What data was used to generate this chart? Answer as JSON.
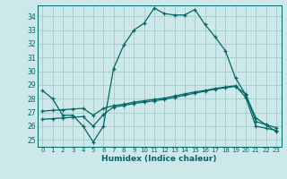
{
  "xlabel": "Humidex (Indice chaleur)",
  "ylabel": "",
  "bg_color": "#cde8e8",
  "grid_color": "#aacece",
  "line_color": "#006666",
  "xlim": [
    -0.5,
    23.5
  ],
  "ylim": [
    24.5,
    34.8
  ],
  "yticks": [
    25,
    26,
    27,
    28,
    29,
    30,
    31,
    32,
    33,
    34
  ],
  "xticks": [
    0,
    1,
    2,
    3,
    4,
    5,
    6,
    7,
    8,
    9,
    10,
    11,
    12,
    13,
    14,
    15,
    16,
    17,
    18,
    19,
    20,
    21,
    22,
    23
  ],
  "line1_x": [
    0,
    1,
    2,
    3,
    4,
    5,
    6,
    7,
    8,
    9,
    10,
    11,
    12,
    13,
    14,
    15,
    16,
    17,
    18,
    19,
    20,
    21,
    22,
    23
  ],
  "line1_y": [
    28.6,
    28.0,
    26.8,
    26.8,
    26.0,
    24.85,
    26.0,
    30.2,
    31.9,
    33.0,
    33.5,
    34.6,
    34.2,
    34.1,
    34.1,
    34.5,
    33.4,
    32.5,
    31.5,
    29.5,
    28.3,
    26.6,
    26.1,
    25.6
  ],
  "line2_x": [
    0,
    1,
    2,
    3,
    4,
    5,
    6,
    7,
    8,
    9,
    10,
    11,
    12,
    13,
    14,
    15,
    16,
    17,
    18,
    19,
    20,
    21,
    22,
    23
  ],
  "line2_y": [
    27.1,
    27.15,
    27.2,
    27.25,
    27.3,
    26.8,
    27.3,
    27.5,
    27.6,
    27.75,
    27.85,
    27.95,
    28.05,
    28.2,
    28.35,
    28.5,
    28.6,
    28.75,
    28.85,
    28.95,
    28.1,
    26.0,
    25.85,
    25.7
  ],
  "line3_x": [
    0,
    1,
    2,
    3,
    4,
    5,
    6,
    7,
    8,
    9,
    10,
    11,
    12,
    13,
    14,
    15,
    16,
    17,
    18,
    19,
    20,
    21,
    22,
    23
  ],
  "line3_y": [
    26.5,
    26.55,
    26.6,
    26.65,
    26.7,
    26.0,
    26.85,
    27.4,
    27.5,
    27.65,
    27.75,
    27.85,
    27.95,
    28.1,
    28.25,
    28.4,
    28.55,
    28.7,
    28.8,
    28.9,
    28.35,
    26.35,
    26.1,
    25.9
  ]
}
